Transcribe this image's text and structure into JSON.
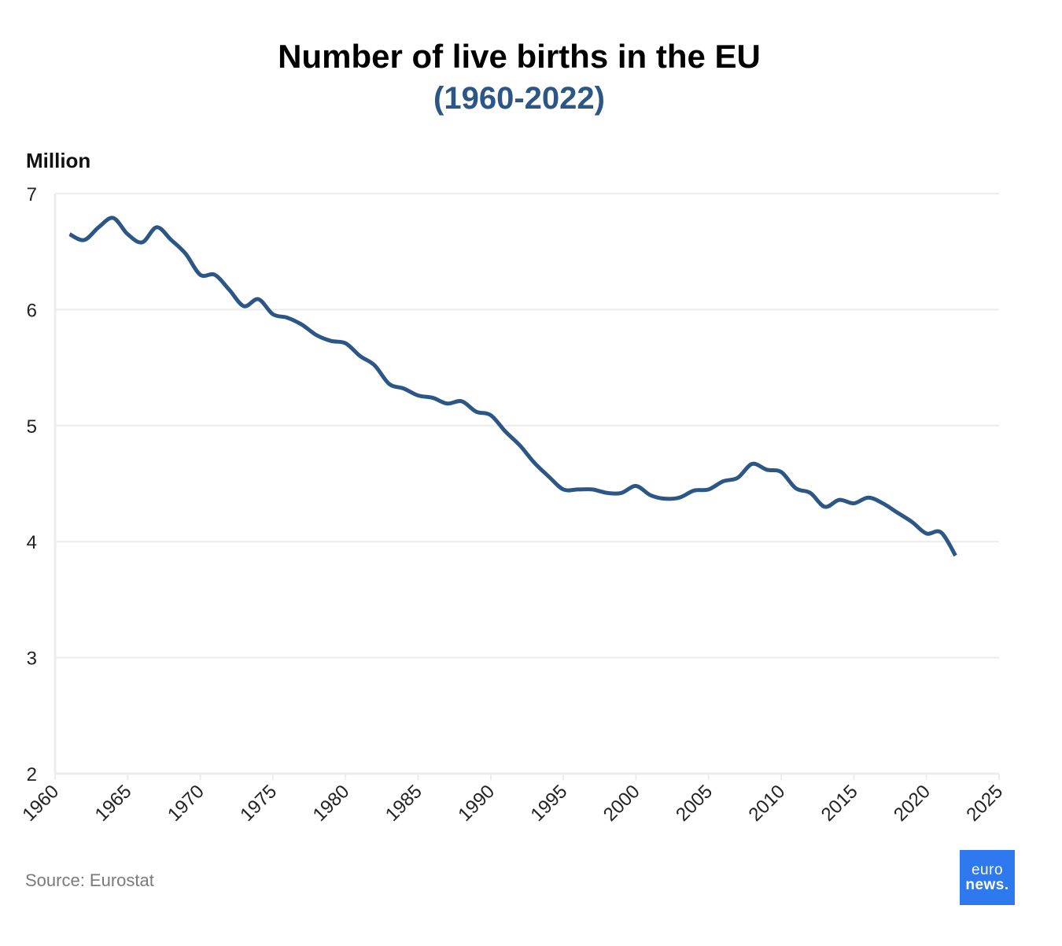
{
  "colors": {
    "line": "#2b5685",
    "subtitle": "#2b5685",
    "grid": "#ececec",
    "axis_text": "#222222",
    "source_text": "#7a7a7a",
    "logo_bg": "#2f79ee"
  },
  "source": "Source: Eurostat",
  "logo": {
    "line1": "euro",
    "line2": "news."
  },
  "chart_data": {
    "type": "line",
    "title": "Number of live births in the EU",
    "subtitle": "(1960-2022)",
    "ylabel": "Million",
    "xlabel": "",
    "xlim": [
      1960,
      2025
    ],
    "ylim": [
      2,
      7
    ],
    "x_ticks": [
      "1960",
      "1965",
      "1970",
      "1975",
      "1980",
      "1985",
      "1990",
      "1995",
      "2000",
      "2005",
      "2010",
      "2015",
      "2020",
      "2025"
    ],
    "y_ticks": [
      "2",
      "3",
      "4",
      "5",
      "6",
      "7"
    ],
    "grid": true,
    "legend": "none",
    "series": [
      {
        "x": [
          1961,
          1962,
          1963,
          1964,
          1965,
          1966,
          1967,
          1968,
          1969,
          1970,
          1971,
          1972,
          1973,
          1974,
          1975,
          1976,
          1977,
          1978,
          1979,
          1980,
          1981,
          1982,
          1983,
          1984,
          1985,
          1986,
          1987,
          1988,
          1989,
          1990,
          1991,
          1992,
          1993,
          1994,
          1995,
          1996,
          1997,
          1998,
          1999,
          2000,
          2001,
          2002,
          2003,
          2004,
          2005,
          2006,
          2007,
          2008,
          2009,
          2010,
          2011,
          2012,
          2013,
          2014,
          2015,
          2016,
          2017,
          2018,
          2019,
          2020,
          2021,
          2022
        ],
        "values": [
          6.65,
          6.6,
          6.71,
          6.79,
          6.65,
          6.58,
          6.71,
          6.6,
          6.48,
          6.3,
          6.3,
          6.17,
          6.03,
          6.09,
          5.96,
          5.93,
          5.87,
          5.78,
          5.73,
          5.71,
          5.6,
          5.52,
          5.36,
          5.32,
          5.26,
          5.24,
          5.19,
          5.21,
          5.12,
          5.09,
          4.95,
          4.83,
          4.68,
          4.56,
          4.45,
          4.45,
          4.45,
          4.42,
          4.42,
          4.48,
          4.4,
          4.37,
          4.38,
          4.44,
          4.45,
          4.52,
          4.55,
          4.67,
          4.62,
          4.6,
          4.46,
          4.42,
          4.3,
          4.36,
          4.33,
          4.38,
          4.33,
          4.25,
          4.17,
          4.07,
          4.08,
          3.88
        ]
      }
    ]
  }
}
